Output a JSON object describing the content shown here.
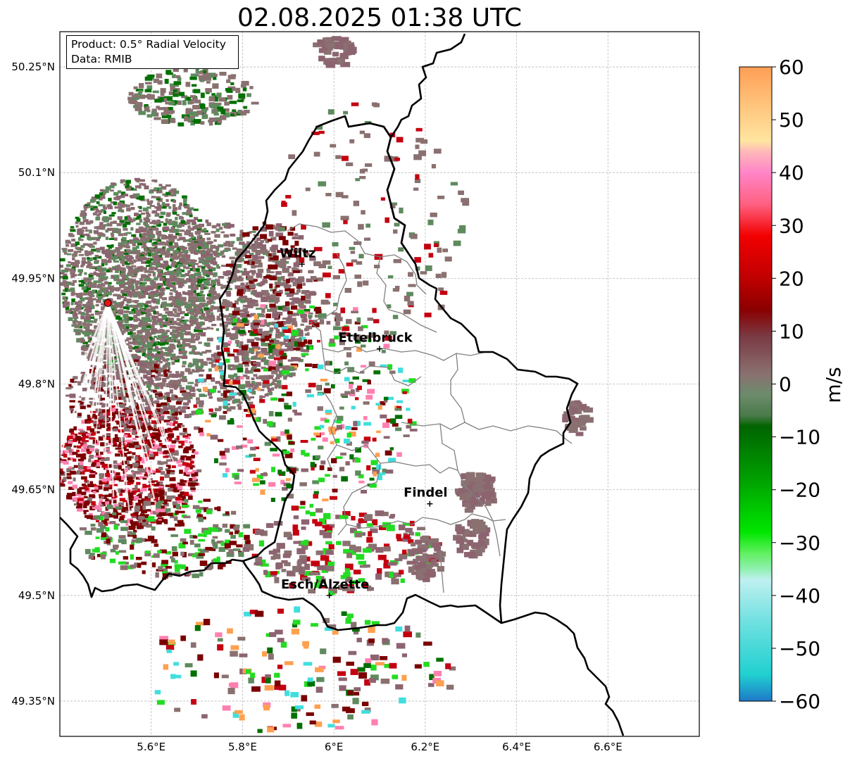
{
  "title": "02.08.2025 01:38 UTC",
  "info_box": {
    "product": "Product: 0.5° Radial Velocity",
    "data": "Data: RMIB"
  },
  "axes": {
    "lat_ticks": [
      "50.25°N",
      "50.1°N",
      "49.95°N",
      "49.8°N",
      "49.65°N",
      "49.5°N",
      "49.35°N"
    ],
    "lat_values": [
      50.25,
      50.1,
      49.95,
      49.8,
      49.65,
      49.5,
      49.35
    ],
    "lon_ticks": [
      "5.6°E",
      "5.8°E",
      "6°E",
      "6.2°E",
      "6.4°E",
      "6.6°E"
    ],
    "lon_values": [
      5.6,
      5.8,
      6.0,
      6.2,
      6.4,
      6.6
    ],
    "lat_range": [
      49.3,
      50.3
    ],
    "lon_range": [
      5.4,
      6.8
    ]
  },
  "cities": [
    {
      "name": "Wiltz",
      "lon": 5.93,
      "lat": 49.97
    },
    {
      "name": "Ettelbruck",
      "lon": 6.1,
      "lat": 49.85
    },
    {
      "name": "Findel",
      "lon": 6.21,
      "lat": 49.63
    },
    {
      "name": "Esch/Alzette",
      "lon": 5.99,
      "lat": 49.5
    }
  ],
  "radar_site": {
    "lon": 5.505,
    "lat": 49.915,
    "color": "#ee1111"
  },
  "colorbar": {
    "label": "m/s",
    "min": -60,
    "max": 60,
    "ticks": [
      "60",
      "50",
      "40",
      "30",
      "20",
      "10",
      "0",
      "−10",
      "−20",
      "−30",
      "−40",
      "−50",
      "−60"
    ],
    "tick_values": [
      60,
      50,
      40,
      30,
      20,
      10,
      0,
      -10,
      -20,
      -30,
      -40,
      -50,
      -60
    ],
    "stops": [
      {
        "v": 60,
        "color": "#ff9e55"
      },
      {
        "v": 52,
        "color": "#ffc880"
      },
      {
        "v": 46,
        "color": "#ffe5a0"
      },
      {
        "v": 44,
        "color": "#ffb9b9"
      },
      {
        "v": 40,
        "color": "#ff85c8"
      },
      {
        "v": 34,
        "color": "#ff6080"
      },
      {
        "v": 28,
        "color": "#f20000"
      },
      {
        "v": 20,
        "color": "#c00000"
      },
      {
        "v": 14,
        "color": "#8a0000"
      },
      {
        "v": 9,
        "color": "#7a3a44"
      },
      {
        "v": 2,
        "color": "#8a7070"
      },
      {
        "v": -2,
        "color": "#6c8c6c"
      },
      {
        "v": -6,
        "color": "#4a7a4a"
      },
      {
        "v": -8,
        "color": "#006400"
      },
      {
        "v": -18,
        "color": "#00a000"
      },
      {
        "v": -28,
        "color": "#00e600"
      },
      {
        "v": -32,
        "color": "#60f060"
      },
      {
        "v": -35,
        "color": "#90f0b0"
      },
      {
        "v": -37,
        "color": "#c0f0f0"
      },
      {
        "v": -45,
        "color": "#70e0e0"
      },
      {
        "v": -55,
        "color": "#20d0d0"
      },
      {
        "v": -60,
        "color": "#1e78c8"
      }
    ]
  },
  "colors": {
    "border": "#000000",
    "admin": "#808080",
    "grid": "#bbbbbb",
    "echo_neutral": "#8a7070",
    "echo_pink": "#8c6470",
    "echo_green": "#5e8a5e",
    "echo_darkgreen": "#007000",
    "echo_darkred": "#7a0000",
    "echo_red": "#c40010",
    "echo_brightgreen": "#22dd22",
    "echo_cyan": "#40dede",
    "echo_pinklight": "#ff80b0",
    "echo_orange": "#ffa050"
  }
}
